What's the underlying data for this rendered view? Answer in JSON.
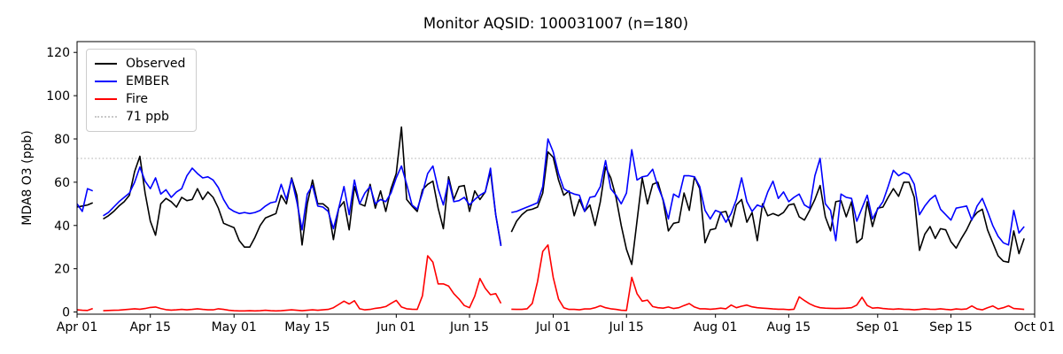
{
  "title": "Monitor AQSID: 100031007 (n=180)",
  "legend": {
    "position": "upper left",
    "items": [
      {
        "label": "Observed",
        "color": "#000000",
        "style": "solid"
      },
      {
        "label": "EMBER",
        "color": "#0000ff",
        "style": "solid"
      },
      {
        "label": "Fire",
        "color": "#ff0000",
        "style": "solid"
      },
      {
        "label": "71 ppb",
        "color": "#c8c8c8",
        "style": "dotted"
      }
    ]
  },
  "chart_data": {
    "type": "line",
    "title": "Monitor AQSID: 100031007 (n=180)",
    "xlabel": "",
    "ylabel": "MDA8 O3 (ppb)",
    "grid": false,
    "legend_position": "upper left",
    "x_unit": "daily values; x index = days since Apr 01",
    "x_axis_span_days": 183,
    "xlim_days": [
      0,
      183
    ],
    "ylim": [
      -1,
      125
    ],
    "yticks": [
      0,
      20,
      40,
      60,
      80,
      100,
      120
    ],
    "xticks": [
      {
        "label": "Apr 01",
        "day": 0
      },
      {
        "label": "Apr 15",
        "day": 14
      },
      {
        "label": "May 01",
        "day": 30
      },
      {
        "label": "May 15",
        "day": 44
      },
      {
        "label": "Jun 01",
        "day": 61
      },
      {
        "label": "Jun 15",
        "day": 75
      },
      {
        "label": "Jul 01",
        "day": 91
      },
      {
        "label": "Jul 15",
        "day": 105
      },
      {
        "label": "Aug 01",
        "day": 122
      },
      {
        "label": "Aug 15",
        "day": 136
      },
      {
        "label": "Sep 01",
        "day": 153
      },
      {
        "label": "Sep 15",
        "day": 167
      },
      {
        "label": "Oct 01",
        "day": 183
      }
    ],
    "threshold_line": {
      "value": 71,
      "label": "71 ppb",
      "color": "#c8c8c8",
      "linestyle": "dotted"
    },
    "n_valid_observations": 180,
    "missing_day_indices": [
      4,
      82
    ],
    "series": [
      {
        "name": "Observed",
        "color": "#000000",
        "linestyle": "solid",
        "values": [
          48.5,
          49,
          49.5,
          50.5,
          null,
          43,
          44.5,
          46.5,
          49,
          51,
          54,
          65,
          72,
          55,
          42,
          35.5,
          50,
          52.5,
          51,
          48.5,
          53,
          51.5,
          52,
          57,
          52,
          55.5,
          53,
          48,
          41,
          40,
          39,
          33,
          30,
          30,
          34.5,
          40,
          43.5,
          44.5,
          45.5,
          54,
          50,
          62,
          54,
          31,
          50,
          61,
          50,
          50,
          48,
          33.5,
          48,
          51,
          38,
          58,
          50,
          49,
          59,
          48,
          56,
          46.5,
          57,
          64,
          85.5,
          52,
          49,
          46.5,
          56.5,
          59,
          60.5,
          48,
          38.5,
          62.5,
          52,
          58,
          58.5,
          46.5,
          56,
          52,
          55.5,
          65,
          45,
          31,
          null,
          37,
          42,
          45,
          47,
          47.5,
          48.5,
          55,
          74,
          71.5,
          61,
          54,
          56,
          44.5,
          52,
          46.5,
          49.5,
          40,
          51,
          67,
          62,
          53,
          40,
          29,
          22,
          42,
          62,
          50,
          59,
          60,
          51.5,
          37.5,
          41,
          41.5,
          55,
          47,
          62.5,
          57,
          32,
          38,
          38.5,
          46,
          46.5,
          39.5,
          49.5,
          52,
          41.5,
          46,
          33,
          50,
          44.5,
          45.5,
          44.5,
          46,
          49.5,
          50,
          44,
          42.5,
          47,
          52,
          58.5,
          44,
          37.5,
          51,
          51.5,
          44,
          51,
          32,
          34,
          51,
          39.5,
          48,
          48.5,
          53,
          57,
          53.5,
          60,
          60,
          53,
          28.5,
          36,
          39.5,
          34,
          38.5,
          38,
          32.5,
          29.5,
          34,
          38,
          43,
          46,
          47.5,
          38,
          32,
          26,
          23.5,
          23,
          37.5,
          27,
          34
        ]
      },
      {
        "name": "EMBER",
        "color": "#0000ff",
        "linestyle": "solid",
        "values": [
          50,
          46.5,
          57,
          56,
          null,
          44.5,
          46,
          48.5,
          51,
          53,
          55,
          60,
          67,
          60.5,
          57,
          62,
          54.5,
          56.5,
          53,
          55.5,
          57,
          63,
          66.5,
          64,
          62,
          62.5,
          61,
          57.5,
          52,
          48,
          46.5,
          45.5,
          46,
          45.5,
          46,
          47,
          49,
          50.5,
          51,
          59,
          52,
          61.5,
          51,
          38,
          54.5,
          58.5,
          49,
          48.5,
          46.5,
          38.5,
          48,
          58,
          45,
          61,
          50,
          55,
          58,
          50,
          52,
          51,
          55,
          62,
          67.5,
          59,
          49.5,
          47.5,
          55,
          64,
          67.5,
          57,
          49.5,
          61,
          51,
          51.5,
          53,
          49.5,
          52,
          54,
          55.5,
          66.5,
          45,
          30.5,
          null,
          46,
          46.5,
          47.5,
          48.5,
          49.5,
          50.5,
          58,
          80,
          74,
          64,
          57,
          55.5,
          54.5,
          54,
          46.5,
          53,
          53.5,
          58,
          70,
          57,
          54,
          50,
          55,
          75,
          61,
          62.5,
          63,
          66,
          58,
          52,
          43,
          54.5,
          53,
          63,
          63,
          62.5,
          58,
          47,
          43,
          47,
          46,
          41.5,
          45.5,
          52,
          62,
          51,
          46.5,
          49.5,
          48.5,
          55.5,
          60.5,
          52.5,
          55.5,
          51,
          53,
          54.5,
          49.5,
          48,
          63,
          71,
          50,
          47,
          33,
          54.5,
          53,
          52.5,
          42,
          48,
          54,
          43,
          47.5,
          51,
          58,
          65.5,
          63,
          64.5,
          63.5,
          59,
          45,
          49,
          52,
          54,
          47.5,
          45,
          42.5,
          48,
          48.5,
          49,
          42.5,
          49,
          52.5,
          46.5,
          40,
          35,
          32,
          31,
          47,
          36.5,
          39.5
        ]
      },
      {
        "name": "Fire",
        "color": "#ff0000",
        "linestyle": "solid",
        "values": [
          1,
          0.8,
          0.7,
          1.6,
          null,
          0.6,
          0.7,
          0.8,
          0.9,
          1.1,
          1.3,
          1.5,
          1.3,
          1.6,
          2.1,
          2.3,
          1.6,
          1.1,
          0.9,
          1,
          1.2,
          1,
          1.2,
          1.5,
          1.2,
          1,
          1,
          1.5,
          1.2,
          0.8,
          0.6,
          0.5,
          0.5,
          0.6,
          0.5,
          0.6,
          0.8,
          0.6,
          0.5,
          0.6,
          0.8,
          1,
          0.8,
          0.6,
          0.8,
          1,
          0.8,
          1,
          1.2,
          2,
          3.5,
          5,
          3.7,
          5.2,
          1.5,
          1,
          1.2,
          1.7,
          2,
          2.5,
          4,
          5.4,
          2.3,
          1.5,
          1.3,
          1.2,
          7.5,
          26,
          23,
          13,
          13,
          12,
          8.5,
          6,
          3,
          2,
          7.3,
          15.5,
          11,
          8,
          8.5,
          4,
          null,
          1.3,
          1.2,
          1.2,
          1.5,
          4,
          14,
          28,
          31,
          16,
          6,
          2,
          1.2,
          1.2,
          1,
          1.4,
          1.4,
          2,
          2.9,
          2,
          1.5,
          1.2,
          0.8,
          0.7,
          16,
          8.5,
          5,
          5.5,
          2.5,
          2,
          1.8,
          2.3,
          1.6,
          2,
          3,
          3.9,
          2.3,
          1.5,
          1.5,
          1.3,
          1.5,
          1.8,
          1.5,
          3.2,
          2,
          2.7,
          3.2,
          2.4,
          2,
          1.8,
          1.6,
          1.4,
          1.3,
          1.3,
          1.1,
          1.3,
          7,
          5.3,
          3.8,
          2.7,
          2,
          1.8,
          1.7,
          1.6,
          1.7,
          1.8,
          2,
          3.2,
          6.8,
          3,
          1.8,
          2,
          1.6,
          1.4,
          1.3,
          1.5,
          1.3,
          1.2,
          1,
          1.2,
          1.5,
          1.3,
          1.2,
          1.5,
          1.2,
          1,
          1.4,
          1.2,
          1.4,
          2.8,
          1.4,
          1,
          2,
          2.8,
          1.4,
          2,
          2.9,
          1.6,
          1.4,
          1.2
        ]
      }
    ]
  }
}
